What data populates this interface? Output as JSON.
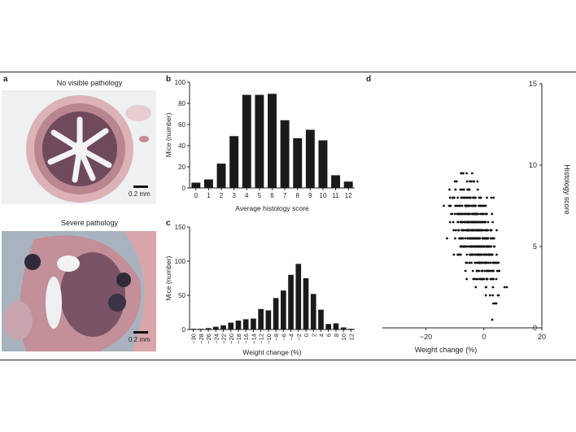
{
  "panel_labels": {
    "a": "a",
    "b": "b",
    "c": "c",
    "d": "d"
  },
  "panel_a": {
    "top_title": "No visible pathology",
    "bottom_title": "Severe pathology",
    "scale_top": "0.2 mm",
    "scale_bottom": "0.2 mm",
    "tissue_color": "#c9a0a6",
    "crypt_color": "#6e4a5c"
  },
  "chart_data": [
    {
      "type": "bar",
      "xlabel": "Average histology score",
      "ylabel": "Mice (number)",
      "categories": [
        "0",
        "1",
        "2",
        "3",
        "4",
        "5",
        "6",
        "7",
        "8",
        "9",
        "10",
        "11",
        "12"
      ],
      "values": [
        5,
        8,
        23,
        49,
        88,
        88,
        89,
        64,
        47,
        55,
        45,
        12,
        6
      ],
      "ylim": [
        0,
        100
      ],
      "yticks": [
        0,
        20,
        40,
        60,
        80,
        100
      ]
    },
    {
      "type": "bar",
      "xlabel": "Weight change (%)",
      "ylabel": "Mice (number)",
      "categories": [
        "−30",
        "−28",
        "−26",
        "−24",
        "−22",
        "−20",
        "−18",
        "−16",
        "−14",
        "−12",
        "−10",
        "−8",
        "−6",
        "−4",
        "−2",
        "0",
        "2",
        "4",
        "6",
        "8",
        "10",
        "12"
      ],
      "values": [
        1,
        1,
        2,
        4,
        6,
        10,
        13,
        15,
        16,
        30,
        28,
        46,
        57,
        80,
        96,
        75,
        52,
        29,
        8,
        9,
        3,
        1
      ],
      "ylim": [
        0,
        150
      ],
      "yticks": [
        0,
        50,
        100,
        150
      ]
    },
    {
      "type": "scatter",
      "xlabel": "Weight change (%)",
      "ylabel": "Histology score",
      "xlim": [
        -35,
        20
      ],
      "ylim": [
        0,
        15
      ],
      "xticks": [
        -20,
        0,
        20
      ],
      "yticks": [
        0,
        5,
        10,
        15
      ],
      "point_color": "#111111"
    }
  ]
}
